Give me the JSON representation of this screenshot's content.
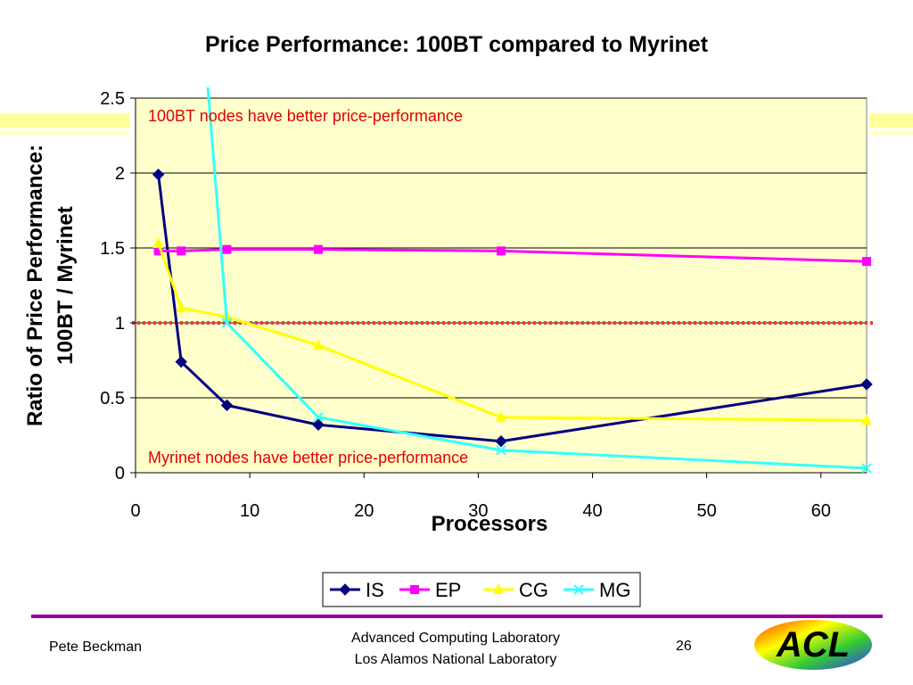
{
  "slide": {
    "title": "Price Performance:  100BT compared to Myrinet",
    "footer": {
      "author": "Pete Beckman",
      "lab_line1": "Advanced Computing Laboratory",
      "lab_line2": "Los Alamos National Laboratory",
      "page_number": "26",
      "logo_text": "ACL"
    },
    "colors": {
      "divider": "#990099",
      "stripe": "#ffff99",
      "plot_bg": "#ffffcc"
    }
  },
  "chart_data": {
    "type": "line",
    "title": "Price Performance:  100BT compared to Myrinet",
    "xlabel": "Processors",
    "ylabel_line1": "Ratio of Price Performance:",
    "ylabel_line2": "100BT / Myrinet",
    "xlim": [
      0,
      64
    ],
    "ylim": [
      0,
      2.5
    ],
    "xticks": [
      0,
      10,
      20,
      30,
      40,
      50,
      60
    ],
    "yticks": [
      0,
      0.5,
      1,
      1.5,
      2,
      2.5
    ],
    "ytick_labels": [
      "0",
      "0.5",
      "1",
      "1.5",
      "2",
      "2.5"
    ],
    "grid": true,
    "legend_position": "bottom",
    "reference_line": 1,
    "annotations": {
      "top": "100BT nodes have better price-performance",
      "bottom": "Myrinet nodes have better price-performance"
    },
    "series": [
      {
        "name": "IS",
        "color": "#000080",
        "marker": "diamond",
        "x": [
          2,
          4,
          8,
          16,
          32,
          64
        ],
        "y": [
          1.99,
          0.74,
          0.45,
          0.32,
          0.21,
          0.59
        ]
      },
      {
        "name": "EP",
        "color": "#ff00ff",
        "marker": "square",
        "x": [
          2,
          4,
          8,
          16,
          32,
          64
        ],
        "y": [
          1.48,
          1.48,
          1.49,
          1.49,
          1.48,
          1.41
        ]
      },
      {
        "name": "CG",
        "color": "#ffff00",
        "marker": "triangle",
        "x": [
          2,
          4,
          8,
          16,
          32,
          64
        ],
        "y": [
          1.53,
          1.1,
          1.04,
          0.85,
          0.37,
          0.35
        ]
      },
      {
        "name": "MG",
        "color": "#33ffff",
        "marker": "x",
        "x": [
          6.3,
          8,
          16,
          32,
          64
        ],
        "y": [
          2.6,
          1.0,
          0.37,
          0.15,
          0.03
        ]
      }
    ]
  }
}
